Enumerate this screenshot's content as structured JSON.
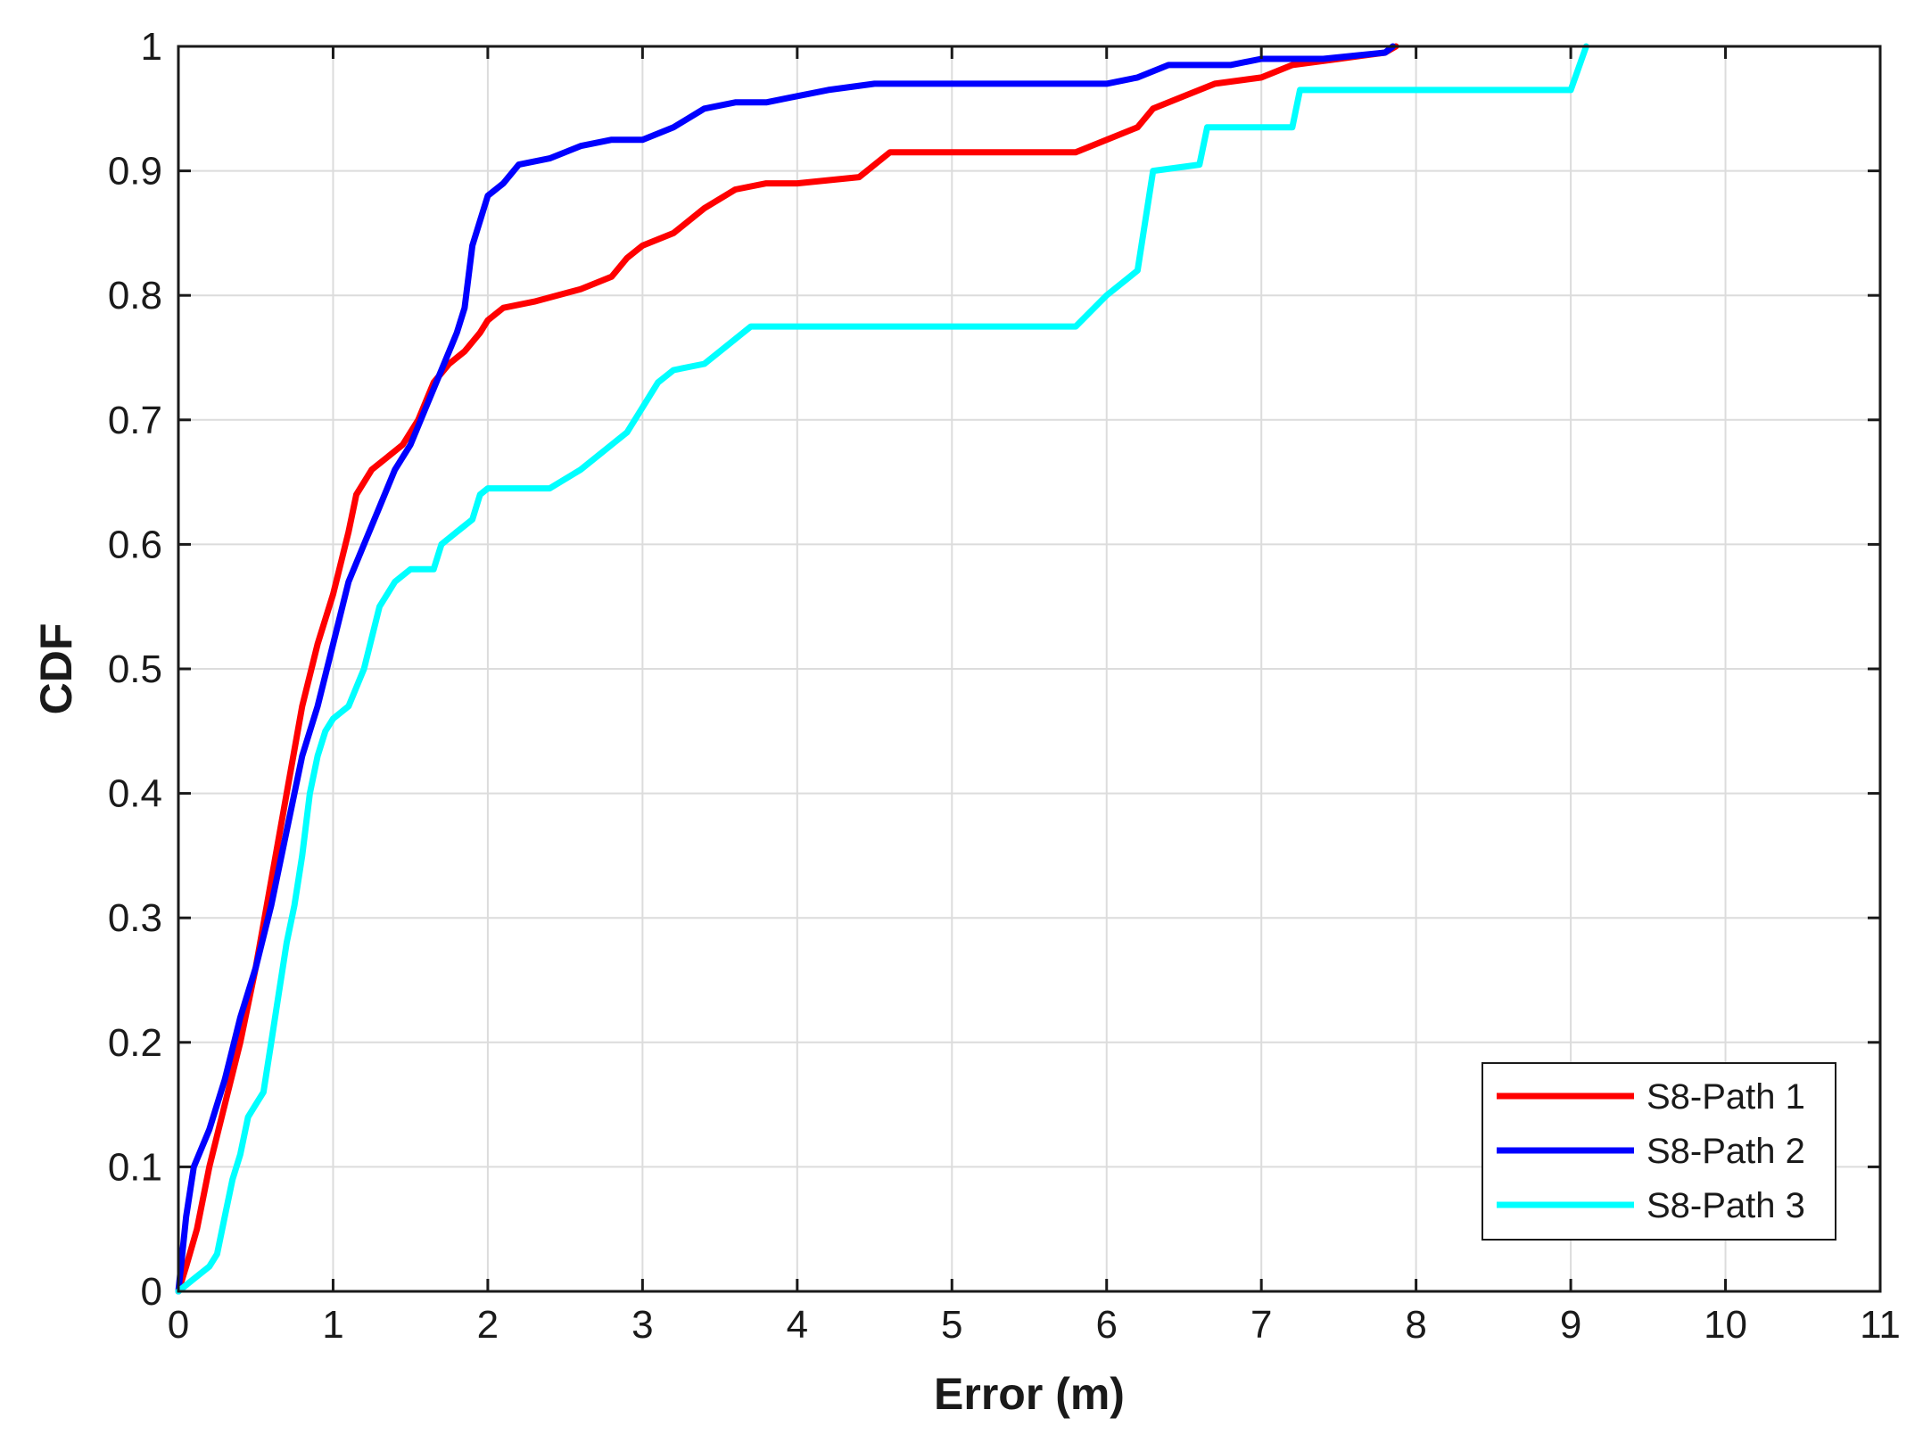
{
  "chart_data": {
    "type": "line",
    "title": "",
    "xlabel": "Error (m)",
    "ylabel": "CDF",
    "xlim": [
      0,
      11
    ],
    "ylim": [
      0,
      1
    ],
    "xticks": [
      0,
      1,
      2,
      3,
      4,
      5,
      6,
      7,
      8,
      9,
      10,
      11
    ],
    "yticks": [
      0,
      0.1,
      0.2,
      0.3,
      0.4,
      0.5,
      0.6,
      0.7,
      0.8,
      0.9,
      1
    ],
    "xtick_labels": [
      "0",
      "1",
      "2",
      "3",
      "4",
      "5",
      "6",
      "7",
      "8",
      "9",
      "10",
      "11"
    ],
    "ytick_labels": [
      "0",
      "0.1",
      "0.2",
      "0.3",
      "0.4",
      "0.5",
      "0.6",
      "0.7",
      "0.8",
      "0.9",
      "1"
    ],
    "grid": true,
    "legend_position": "bottom-right",
    "series": [
      {
        "name": "S8-Path 1",
        "color": "#ff0000",
        "points": [
          [
            0,
            0
          ],
          [
            0.05,
            0.02
          ],
          [
            0.12,
            0.05
          ],
          [
            0.2,
            0.1
          ],
          [
            0.3,
            0.15
          ],
          [
            0.4,
            0.2
          ],
          [
            0.5,
            0.26
          ],
          [
            0.6,
            0.33
          ],
          [
            0.7,
            0.4
          ],
          [
            0.8,
            0.47
          ],
          [
            0.9,
            0.52
          ],
          [
            1.0,
            0.56
          ],
          [
            1.1,
            0.61
          ],
          [
            1.15,
            0.64
          ],
          [
            1.25,
            0.66
          ],
          [
            1.35,
            0.67
          ],
          [
            1.45,
            0.68
          ],
          [
            1.55,
            0.7
          ],
          [
            1.65,
            0.73
          ],
          [
            1.75,
            0.745
          ],
          [
            1.85,
            0.755
          ],
          [
            1.95,
            0.77
          ],
          [
            2.0,
            0.78
          ],
          [
            2.1,
            0.79
          ],
          [
            2.3,
            0.795
          ],
          [
            2.6,
            0.805
          ],
          [
            2.8,
            0.815
          ],
          [
            2.9,
            0.83
          ],
          [
            3.0,
            0.84
          ],
          [
            3.2,
            0.85
          ],
          [
            3.4,
            0.87
          ],
          [
            3.6,
            0.885
          ],
          [
            3.8,
            0.89
          ],
          [
            4.0,
            0.89
          ],
          [
            4.4,
            0.895
          ],
          [
            4.6,
            0.915
          ],
          [
            4.8,
            0.915
          ],
          [
            5.8,
            0.915
          ],
          [
            6.0,
            0.925
          ],
          [
            6.2,
            0.935
          ],
          [
            6.3,
            0.95
          ],
          [
            6.5,
            0.96
          ],
          [
            6.7,
            0.97
          ],
          [
            7.0,
            0.975
          ],
          [
            7.2,
            0.985
          ],
          [
            7.5,
            0.99
          ],
          [
            7.8,
            0.995
          ],
          [
            7.87,
            1.0
          ]
        ]
      },
      {
        "name": "S8-Path 2",
        "color": "#0000ff",
        "points": [
          [
            0,
            0
          ],
          [
            0.05,
            0.06
          ],
          [
            0.1,
            0.1
          ],
          [
            0.2,
            0.13
          ],
          [
            0.3,
            0.17
          ],
          [
            0.4,
            0.22
          ],
          [
            0.5,
            0.26
          ],
          [
            0.6,
            0.31
          ],
          [
            0.7,
            0.37
          ],
          [
            0.8,
            0.43
          ],
          [
            0.9,
            0.47
          ],
          [
            1.0,
            0.52
          ],
          [
            1.1,
            0.57
          ],
          [
            1.2,
            0.6
          ],
          [
            1.3,
            0.63
          ],
          [
            1.4,
            0.66
          ],
          [
            1.5,
            0.68
          ],
          [
            1.6,
            0.71
          ],
          [
            1.7,
            0.74
          ],
          [
            1.8,
            0.77
          ],
          [
            1.85,
            0.79
          ],
          [
            1.9,
            0.84
          ],
          [
            2.0,
            0.88
          ],
          [
            2.1,
            0.89
          ],
          [
            2.2,
            0.905
          ],
          [
            2.4,
            0.91
          ],
          [
            2.6,
            0.92
          ],
          [
            2.8,
            0.925
          ],
          [
            3.0,
            0.925
          ],
          [
            3.2,
            0.935
          ],
          [
            3.4,
            0.95
          ],
          [
            3.6,
            0.955
          ],
          [
            3.8,
            0.955
          ],
          [
            4.0,
            0.96
          ],
          [
            4.2,
            0.965
          ],
          [
            4.5,
            0.97
          ],
          [
            5.0,
            0.97
          ],
          [
            6.0,
            0.97
          ],
          [
            6.2,
            0.975
          ],
          [
            6.4,
            0.985
          ],
          [
            6.6,
            0.985
          ],
          [
            6.8,
            0.985
          ],
          [
            7.0,
            0.99
          ],
          [
            7.4,
            0.99
          ],
          [
            7.8,
            0.995
          ],
          [
            7.85,
            1.0
          ]
        ]
      },
      {
        "name": "S8-Path 3",
        "color": "#00ffff",
        "points": [
          [
            0,
            0
          ],
          [
            0.1,
            0.01
          ],
          [
            0.2,
            0.02
          ],
          [
            0.25,
            0.03
          ],
          [
            0.3,
            0.06
          ],
          [
            0.35,
            0.09
          ],
          [
            0.4,
            0.11
          ],
          [
            0.45,
            0.14
          ],
          [
            0.5,
            0.15
          ],
          [
            0.55,
            0.16
          ],
          [
            0.6,
            0.2
          ],
          [
            0.65,
            0.24
          ],
          [
            0.7,
            0.28
          ],
          [
            0.75,
            0.31
          ],
          [
            0.8,
            0.35
          ],
          [
            0.85,
            0.4
          ],
          [
            0.9,
            0.43
          ],
          [
            0.95,
            0.45
          ],
          [
            1.0,
            0.46
          ],
          [
            1.1,
            0.47
          ],
          [
            1.2,
            0.5
          ],
          [
            1.3,
            0.55
          ],
          [
            1.4,
            0.57
          ],
          [
            1.5,
            0.58
          ],
          [
            1.65,
            0.58
          ],
          [
            1.7,
            0.6
          ],
          [
            1.8,
            0.61
          ],
          [
            1.9,
            0.62
          ],
          [
            1.95,
            0.64
          ],
          [
            2.0,
            0.645
          ],
          [
            2.4,
            0.645
          ],
          [
            2.6,
            0.66
          ],
          [
            2.8,
            0.68
          ],
          [
            2.9,
            0.69
          ],
          [
            3.0,
            0.71
          ],
          [
            3.1,
            0.73
          ],
          [
            3.2,
            0.74
          ],
          [
            3.4,
            0.745
          ],
          [
            3.6,
            0.765
          ],
          [
            3.7,
            0.775
          ],
          [
            4.0,
            0.775
          ],
          [
            5.0,
            0.775
          ],
          [
            5.8,
            0.775
          ],
          [
            6.0,
            0.8
          ],
          [
            6.2,
            0.82
          ],
          [
            6.25,
            0.86
          ],
          [
            6.3,
            0.9
          ],
          [
            6.6,
            0.905
          ],
          [
            6.65,
            0.935
          ],
          [
            7.2,
            0.935
          ],
          [
            7.25,
            0.965
          ],
          [
            8.0,
            0.965
          ],
          [
            9.0,
            0.965
          ],
          [
            9.1,
            1.0
          ]
        ]
      }
    ]
  }
}
